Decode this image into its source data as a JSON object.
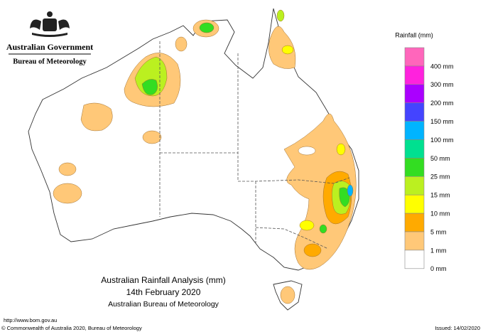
{
  "header": {
    "government": "Australian Government",
    "agency": "Bureau of Meteorology"
  },
  "legend": {
    "title": "Rainfall (mm)",
    "colors": [
      "#ff66bb",
      "#ff22dd",
      "#aa00ff",
      "#4444ff",
      "#00b4ff",
      "#00e090",
      "#33dd22",
      "#bbf020",
      "#ffff00",
      "#ffaa00",
      "#ffc878",
      "#ffffff"
    ],
    "labels": [
      "400 mm",
      "300 mm",
      "200 mm",
      "150 mm",
      "100 mm",
      "50 mm",
      "25 mm",
      "15 mm",
      "10 mm",
      "5 mm",
      "1 mm",
      "0 mm"
    ]
  },
  "title": {
    "line1": "Australian Rainfall Analysis (mm)",
    "line2": "14th February 2020",
    "line3": "Australian Bureau of Meteorology"
  },
  "footer": {
    "url": "http://www.bom.gov.au",
    "copyright": "© Commonwealth of Australia 2020, Bureau of Meteorology",
    "issued": "Issued: 14/02/2020"
  }
}
